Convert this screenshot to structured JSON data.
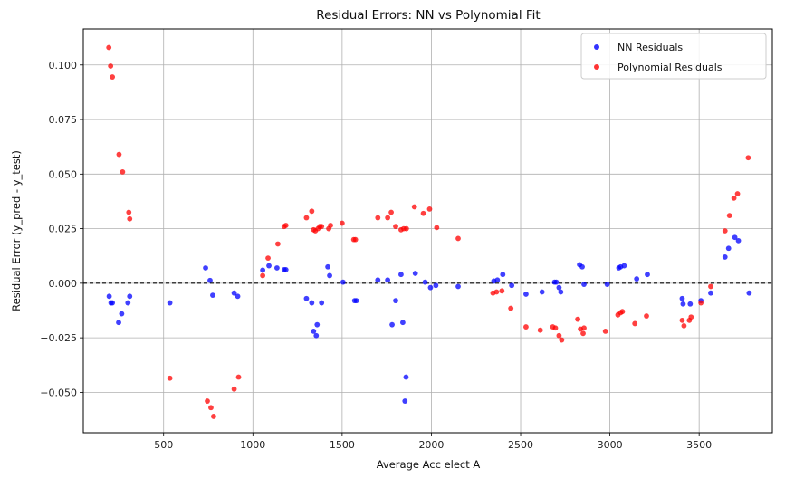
{
  "chart_data": {
    "type": "scatter",
    "title": "Residual Errors: NN vs Polynomial Fit",
    "xlabel": "Average Acc elect A",
    "ylabel": "Residual Error (y_pred - y_test)",
    "xlim": [
      50,
      3910
    ],
    "ylim": [
      -0.0685,
      0.1165
    ],
    "xticks": [
      500,
      1000,
      1500,
      2000,
      2500,
      3000,
      3500
    ],
    "xtick_labels": [
      "500",
      "1000",
      "1500",
      "2000",
      "2500",
      "3000",
      "3500"
    ],
    "yticks": [
      -0.05,
      -0.025,
      0.0,
      0.025,
      0.05,
      0.075,
      0.1
    ],
    "ytick_labels": [
      "−0.050",
      "−0.025",
      "0.000",
      "0.025",
      "0.050",
      "0.075",
      "0.100"
    ],
    "grid": true,
    "legend_position": "top-right",
    "reference_line": {
      "y": 0,
      "style": "dashed",
      "color": "#000000"
    },
    "series": [
      {
        "name": "NN Residuals",
        "color": "#0000ff",
        "points": [
          [
            195,
            -0.006
          ],
          [
            205,
            -0.009
          ],
          [
            213,
            -0.009
          ],
          [
            248,
            -0.018
          ],
          [
            265,
            -0.014
          ],
          [
            300,
            -0.009
          ],
          [
            310,
            -0.006
          ],
          [
            535,
            -0.009
          ],
          [
            735,
            0.007
          ],
          [
            760,
            0.0013
          ],
          [
            775,
            -0.0055
          ],
          [
            895,
            -0.0045
          ],
          [
            915,
            -0.006
          ],
          [
            1055,
            0.006
          ],
          [
            1090,
            0.008
          ],
          [
            1135,
            0.007
          ],
          [
            1175,
            0.0062
          ],
          [
            1185,
            0.0062
          ],
          [
            1300,
            -0.007
          ],
          [
            1330,
            -0.009
          ],
          [
            1340,
            -0.022
          ],
          [
            1355,
            -0.024
          ],
          [
            1360,
            -0.019
          ],
          [
            1385,
            -0.009
          ],
          [
            1420,
            0.0075
          ],
          [
            1430,
            0.0035
          ],
          [
            1505,
            0.0005
          ],
          [
            1570,
            -0.008
          ],
          [
            1580,
            -0.008
          ],
          [
            1700,
            0.0015
          ],
          [
            1755,
            0.0015
          ],
          [
            1780,
            -0.019
          ],
          [
            1800,
            -0.008
          ],
          [
            1830,
            0.004
          ],
          [
            1840,
            -0.018
          ],
          [
            1858,
            -0.043
          ],
          [
            1852,
            -0.054
          ],
          [
            1910,
            0.0045
          ],
          [
            1965,
            0.0005
          ],
          [
            1995,
            -0.002
          ],
          [
            2025,
            -0.001
          ],
          [
            2150,
            -0.0015
          ],
          [
            2350,
            0.001
          ],
          [
            2370,
            0.0015
          ],
          [
            2400,
            0.004
          ],
          [
            2450,
            -0.001
          ],
          [
            2530,
            -0.005
          ],
          [
            2620,
            -0.004
          ],
          [
            2690,
            0.0005
          ],
          [
            2700,
            0.0005
          ],
          [
            2715,
            -0.002
          ],
          [
            2725,
            -0.004
          ],
          [
            2830,
            0.0085
          ],
          [
            2845,
            0.0075
          ],
          [
            2855,
            -0.0005
          ],
          [
            2985,
            -0.0005
          ],
          [
            3050,
            0.007
          ],
          [
            3060,
            0.0075
          ],
          [
            3080,
            0.008
          ],
          [
            3150,
            0.002
          ],
          [
            3210,
            0.004
          ],
          [
            3405,
            -0.007
          ],
          [
            3410,
            -0.0095
          ],
          [
            3450,
            -0.0095
          ],
          [
            3510,
            -0.008
          ],
          [
            3565,
            -0.0045
          ],
          [
            3645,
            0.012
          ],
          [
            3665,
            0.016
          ],
          [
            3700,
            0.021
          ],
          [
            3720,
            0.0195
          ],
          [
            3780,
            -0.0045
          ]
        ]
      },
      {
        "name": "Polynomial Residuals",
        "color": "#ff0000",
        "points": [
          [
            193,
            0.108
          ],
          [
            203,
            0.0995
          ],
          [
            213,
            0.0945
          ],
          [
            250,
            0.059
          ],
          [
            270,
            0.051
          ],
          [
            305,
            0.0325
          ],
          [
            310,
            0.0295
          ],
          [
            535,
            -0.0435
          ],
          [
            745,
            -0.054
          ],
          [
            765,
            -0.057
          ],
          [
            780,
            -0.061
          ],
          [
            895,
            -0.0485
          ],
          [
            920,
            -0.043
          ],
          [
            1055,
            0.0035
          ],
          [
            1085,
            0.0115
          ],
          [
            1140,
            0.018
          ],
          [
            1175,
            0.026
          ],
          [
            1185,
            0.0265
          ],
          [
            1300,
            0.03
          ],
          [
            1330,
            0.033
          ],
          [
            1340,
            0.0245
          ],
          [
            1350,
            0.024
          ],
          [
            1365,
            0.025
          ],
          [
            1375,
            0.026
          ],
          [
            1385,
            0.026
          ],
          [
            1425,
            0.025
          ],
          [
            1435,
            0.0265
          ],
          [
            1500,
            0.0275
          ],
          [
            1565,
            0.02
          ],
          [
            1575,
            0.02
          ],
          [
            1700,
            0.03
          ],
          [
            1755,
            0.03
          ],
          [
            1775,
            0.0325
          ],
          [
            1800,
            0.026
          ],
          [
            1830,
            0.0245
          ],
          [
            1845,
            0.025
          ],
          [
            1860,
            0.025
          ],
          [
            1905,
            0.035
          ],
          [
            1955,
            0.032
          ],
          [
            1990,
            0.034
          ],
          [
            2030,
            0.0255
          ],
          [
            2150,
            0.0205
          ],
          [
            2345,
            -0.0045
          ],
          [
            2365,
            -0.004
          ],
          [
            2395,
            -0.0035
          ],
          [
            2445,
            -0.0115
          ],
          [
            2530,
            -0.02
          ],
          [
            2610,
            -0.0215
          ],
          [
            2680,
            -0.02
          ],
          [
            2695,
            -0.0205
          ],
          [
            2715,
            -0.024
          ],
          [
            2730,
            -0.026
          ],
          [
            2820,
            -0.0165
          ],
          [
            2835,
            -0.021
          ],
          [
            2855,
            -0.0205
          ],
          [
            2850,
            -0.023
          ],
          [
            2975,
            -0.022
          ],
          [
            3045,
            -0.0145
          ],
          [
            3060,
            -0.0135
          ],
          [
            3070,
            -0.013
          ],
          [
            3140,
            -0.0185
          ],
          [
            3205,
            -0.015
          ],
          [
            3405,
            -0.017
          ],
          [
            3415,
            -0.0195
          ],
          [
            3445,
            -0.017
          ],
          [
            3455,
            -0.0155
          ],
          [
            3510,
            -0.009
          ],
          [
            3565,
            -0.0015
          ],
          [
            3645,
            0.024
          ],
          [
            3670,
            0.031
          ],
          [
            3695,
            0.039
          ],
          [
            3715,
            0.041
          ],
          [
            3775,
            0.0575
          ]
        ]
      }
    ]
  }
}
